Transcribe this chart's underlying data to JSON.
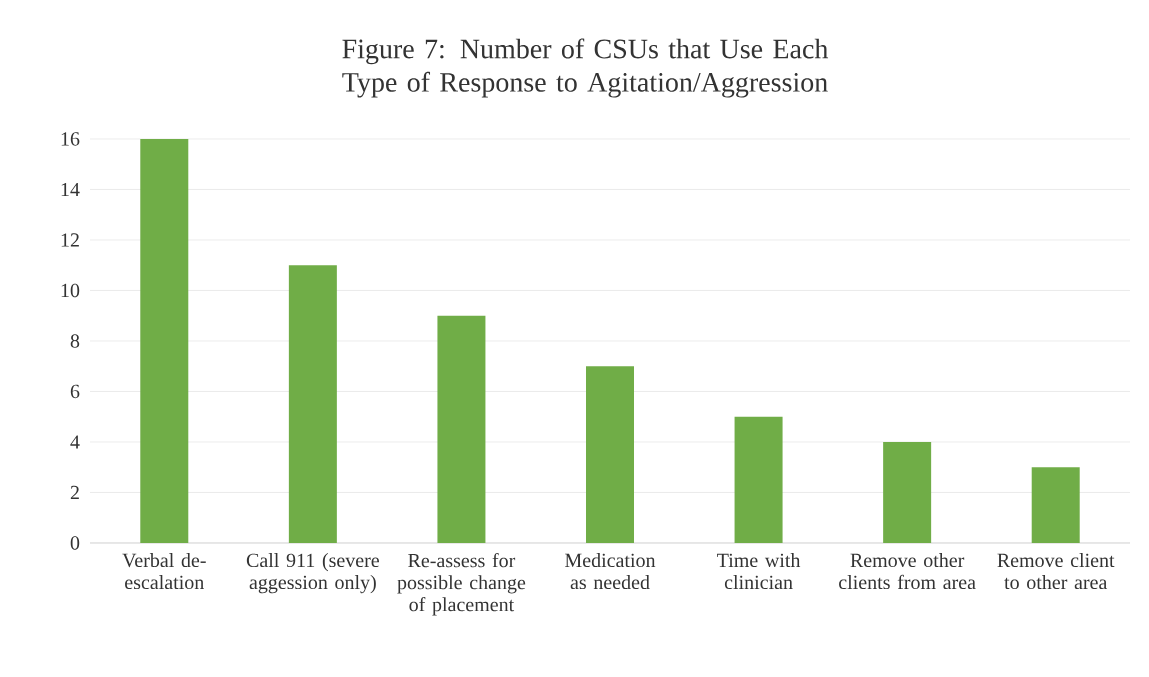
{
  "chart_data": {
    "type": "bar",
    "title": "Figure 7: Number of CSUs that Use Each Type of Response to Agitation/Aggression",
    "categories": [
      "Verbal de-escalation",
      "Call 911 (severe aggession only)",
      "Re-assess for possible change of placement",
      "Medication as needed",
      "Time with clinician",
      "Remove other clients from area",
      "Remove client to other area"
    ],
    "values": [
      16,
      11,
      9,
      7,
      5,
      4,
      3
    ],
    "color": "#70ad47",
    "ylim": [
      0,
      16
    ],
    "yticks": [
      0,
      2,
      4,
      6,
      8,
      10,
      12,
      14,
      16
    ],
    "grid": "y"
  }
}
